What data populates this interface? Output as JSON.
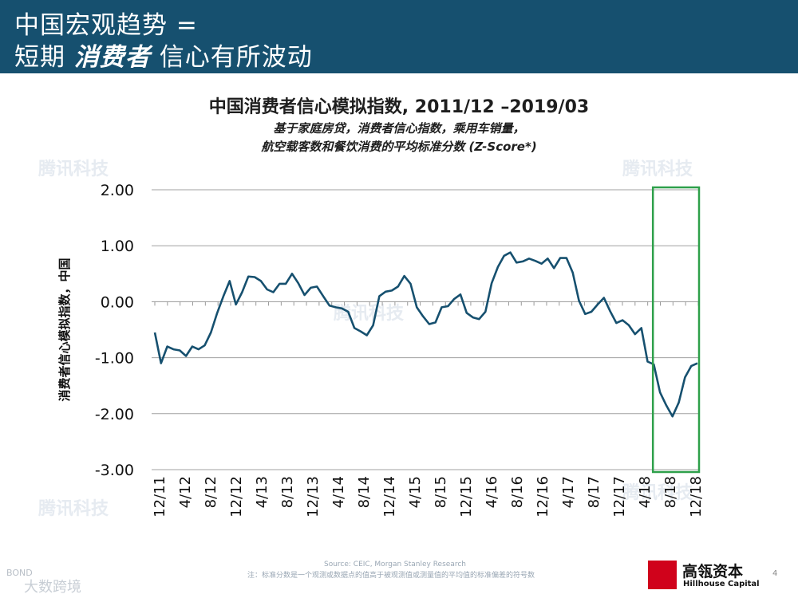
{
  "header": {
    "line1": "中国宏观趋势 =",
    "line2_pre": "短期 ",
    "line2_em": "消费者",
    "line2_post": " 信心有所波动"
  },
  "watermarks": {
    "tencent": "腾讯科技",
    "bond": "BOND",
    "bond_cn": "大数跨境"
  },
  "footer": {
    "source": "Source: CEIC, Morgan Stanley Research",
    "note": "注：标准分数是一个观测或数据点的值高于被观测值或测量值的平均值的标准偏差的符号数",
    "logo_cn": "高瓴资本",
    "logo_en": "Hillhouse Capital",
    "page": "4"
  },
  "chart_data": {
    "type": "line",
    "title": "中国消费者信心模拟指数, 2011/12 –2019/03",
    "subtitle_line1": "基于家庭房贷，消费者信心指数，乘用车销量，",
    "subtitle_line2": "航空载客数和餐饮消费的平均标准分数 (Z-Score*)",
    "ylabel": "消费者信心模拟指数，中国",
    "xlabel": "",
    "ylim": [
      -3,
      2
    ],
    "yticks": [
      "2.00",
      "1.00",
      "0.00",
      "-1.00",
      "-2.00",
      "-3.00"
    ],
    "xticks": [
      "12/11",
      "4/12",
      "8/12",
      "12/12",
      "4/13",
      "8/13",
      "12/13",
      "4/14",
      "8/14",
      "12/14",
      "4/15",
      "8/15",
      "12/15",
      "4/16",
      "8/16",
      "12/16",
      "4/17",
      "8/17",
      "12/17",
      "4/18",
      "8/18",
      "12/18"
    ],
    "grid": true,
    "color": "#16506f",
    "highlight": {
      "from": "4/18",
      "to": "3/19",
      "color": "#2ea04a"
    },
    "series": [
      {
        "values": [
          -0.55,
          -1.1,
          -0.8,
          -0.85,
          -0.87,
          -0.97,
          -0.8,
          -0.85,
          -0.78,
          -0.55,
          -0.2,
          0.1,
          0.37,
          -0.05,
          0.17,
          0.45,
          0.44,
          0.37,
          0.22,
          0.17,
          0.32,
          0.32,
          0.5,
          0.33,
          0.12,
          0.25,
          0.27,
          0.1,
          -0.07,
          -0.1,
          -0.12,
          -0.18,
          -0.47,
          -0.53,
          -0.6,
          -0.42,
          0.1,
          0.18,
          0.2,
          0.27,
          0.46,
          0.32,
          -0.1,
          -0.26,
          -0.4,
          -0.37,
          -0.1,
          -0.08,
          0.05,
          0.13,
          -0.2,
          -0.28,
          -0.31,
          -0.18,
          0.33,
          0.62,
          0.82,
          0.88,
          0.7,
          0.72,
          0.77,
          0.73,
          0.68,
          0.77,
          0.6,
          0.78,
          0.78,
          0.52,
          0.02,
          -0.22,
          -0.18,
          -0.05,
          0.07,
          -0.17,
          -0.38,
          -0.33,
          -0.42,
          -0.58,
          -0.47,
          -1.07,
          -1.12,
          -1.62,
          -1.85,
          -2.05,
          -1.8,
          -1.35,
          -1.15,
          -1.1
        ]
      }
    ]
  }
}
